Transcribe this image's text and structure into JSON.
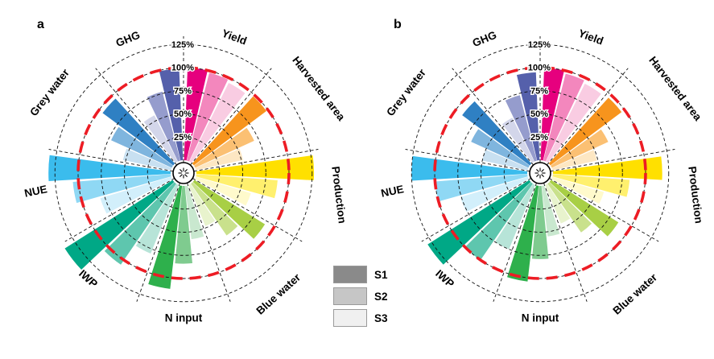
{
  "legend": {
    "items": [
      {
        "label": "S1",
        "color": "#8a8a8a"
      },
      {
        "label": "S2",
        "color": "#c6c6c6"
      },
      {
        "label": "S3",
        "color": "#f0f0f0"
      }
    ]
  },
  "chart_data": {
    "type": "bar",
    "layout": "polar",
    "unit": "%",
    "rings": [
      25,
      50,
      75,
      100,
      125
    ],
    "ring_labels": [
      "25%",
      "50%",
      "75%",
      "100%",
      "125%"
    ],
    "radial_range": [
      0,
      140
    ],
    "reference_circle": 100,
    "reference_color": "#ed1c24",
    "series_names": [
      "S1",
      "S2",
      "S3"
    ],
    "categories": [
      "Yield",
      "Harvested area",
      "Production",
      "Blue water",
      "N input",
      "IWP",
      "NUE",
      "Grey water",
      "GHG"
    ],
    "colors": {
      "Yield": [
        "#e6007e",
        "#f387bd",
        "#f9cce2"
      ],
      "Harvested area": [
        "#f7941d",
        "#fbc073",
        "#fde7c3"
      ],
      "Production": [
        "#ffe000",
        "#fff06e",
        "#fffacc"
      ],
      "Blue water": [
        "#a8cf45",
        "#c9e18c",
        "#e8f3cd"
      ],
      "N input": [
        "#2eb04c",
        "#7fcb8f",
        "#c9e8cf"
      ],
      "IWP": [
        "#00a886",
        "#5ec6ae",
        "#b7e4d8"
      ],
      "NUE": [
        "#3bbced",
        "#8fd8f4",
        "#d2effb"
      ],
      "Grey water": [
        "#2f80c3",
        "#7fb5de",
        "#c8e0f1"
      ],
      "GHG": [
        "#5560ab",
        "#959ccd",
        "#d3d6ea"
      ]
    },
    "panels": [
      {
        "label": "a",
        "values": {
          "Yield": [
            100,
            98,
            95
          ],
          "Harvested area": [
            98,
            70,
            52
          ],
          "Production": [
            127,
            88,
            62
          ],
          "Blue water": [
            90,
            68,
            48
          ],
          "N input": [
            112,
            84,
            58
          ],
          "IWP": [
            138,
            106,
            80
          ],
          "NUE": [
            132,
            106,
            80
          ],
          "Grey water": [
            95,
            72,
            53
          ],
          "GHG": [
            99,
            77,
            56
          ]
        }
      },
      {
        "label": "b",
        "values": {
          "Yield": [
            100,
            97,
            94
          ],
          "Harvested area": [
            96,
            67,
            49
          ],
          "Production": [
            118,
            83,
            58
          ],
          "Blue water": [
            86,
            64,
            45
          ],
          "N input": [
            104,
            79,
            55
          ],
          "IWP": [
            130,
            100,
            75
          ],
          "NUE": [
            125,
            100,
            76
          ],
          "Grey water": [
            91,
            68,
            50
          ],
          "GHG": [
            95,
            73,
            53
          ]
        }
      }
    ]
  }
}
